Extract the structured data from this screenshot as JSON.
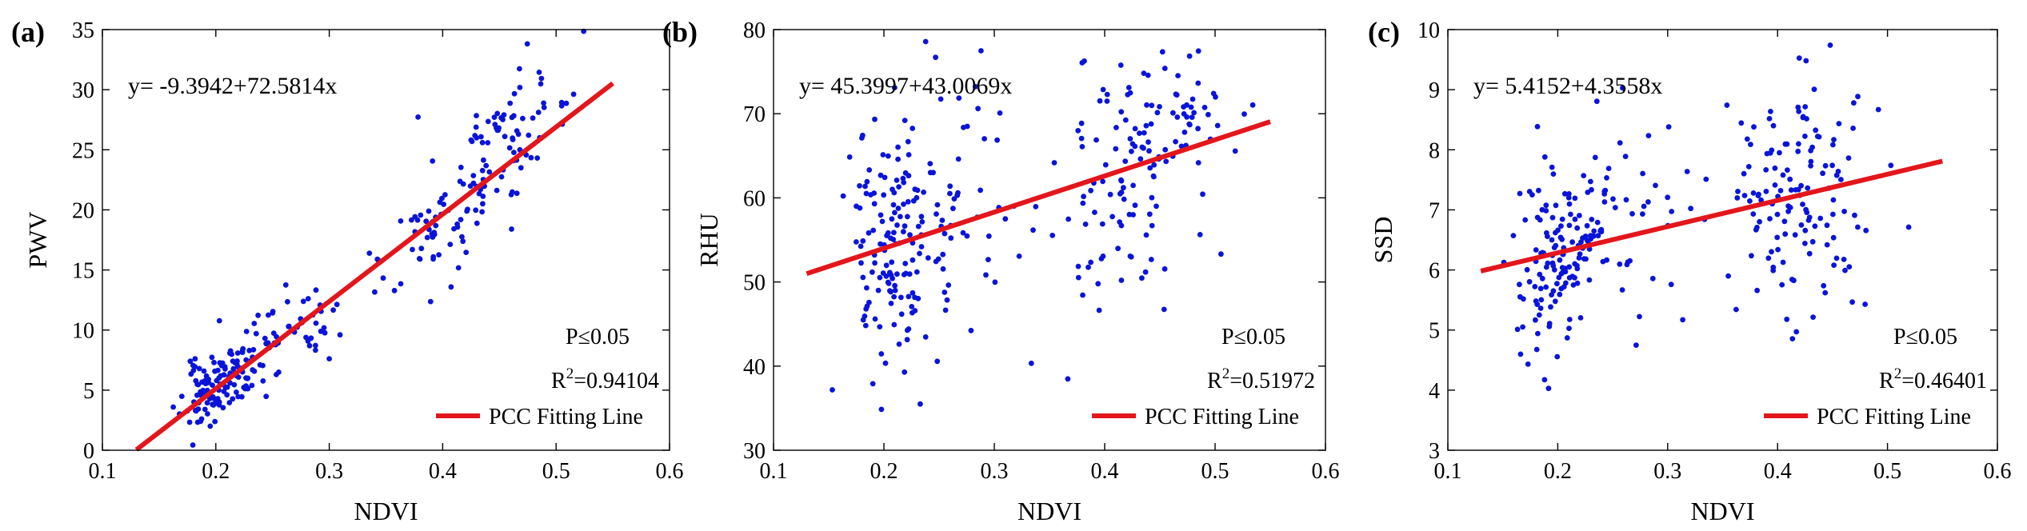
{
  "colors": {
    "points": "#0a14d8",
    "fit_line": "#e3161c",
    "axis": "#000000"
  },
  "chart_data": [
    {
      "type": "scatter",
      "panel_label": "(a)",
      "xlabel": "NDVI",
      "ylabel": "PWV",
      "xlim": [
        0.1,
        0.6
      ],
      "ylim": [
        0,
        35
      ],
      "xticks": [
        "0.1",
        "0.2",
        "0.3",
        "0.4",
        "0.5",
        "0.6"
      ],
      "yticks": [
        "0",
        "5",
        "10",
        "15",
        "20",
        "25",
        "30",
        "35"
      ],
      "equation": "y= -9.3942+72.5814x",
      "p_text": "P≤0.05",
      "r2_prefix": "R",
      "r2_sup": "2",
      "r2_value": "=0.94104",
      "legend_label": "PCC Fitting Line",
      "fit": {
        "intercept": -9.3942,
        "slope": 72.5814,
        "x_range": [
          0.13,
          0.55
        ]
      },
      "clusters": [
        {
          "cx": 0.205,
          "cy": 5.5,
          "sx": 0.018,
          "sy": 1.6,
          "n": 130,
          "rho": 0.5
        },
        {
          "cx": 0.27,
          "cy": 10.5,
          "sx": 0.025,
          "sy": 1.8,
          "n": 45,
          "rho": 0.5
        },
        {
          "cx": 0.41,
          "cy": 19.5,
          "sx": 0.03,
          "sy": 3.5,
          "n": 80,
          "rho": 0.6
        },
        {
          "cx": 0.465,
          "cy": 27.0,
          "sx": 0.025,
          "sy": 2.2,
          "n": 55,
          "rho": 0.3
        }
      ],
      "seed": 11
    },
    {
      "type": "scatter",
      "panel_label": "(b)",
      "xlabel": "NDVI",
      "ylabel": "RHU",
      "xlim": [
        0.1,
        0.6
      ],
      "ylim": [
        30,
        80
      ],
      "xticks": [
        "0.1",
        "0.2",
        "0.3",
        "0.4",
        "0.5",
        "0.6"
      ],
      "yticks": [
        "30",
        "40",
        "50",
        "60",
        "70",
        "80"
      ],
      "equation": "y= 45.3997+43.0069x",
      "p_text": "P≤0.05",
      "r2_prefix": "R",
      "r2_sup": "2",
      "r2_value": "=0.51972",
      "legend_label": "PCC Fitting Line",
      "fit": {
        "intercept": 45.3997,
        "slope": 43.0069,
        "x_range": [
          0.13,
          0.55
        ]
      },
      "clusters": [
        {
          "cx": 0.21,
          "cy": 54,
          "sx": 0.022,
          "sy": 7.5,
          "n": 150,
          "rho": 0.0
        },
        {
          "cx": 0.27,
          "cy": 58,
          "sx": 0.028,
          "sy": 9.0,
          "n": 40,
          "rho": 0.0
        },
        {
          "cx": 0.41,
          "cy": 61,
          "sx": 0.028,
          "sy": 8.5,
          "n": 80,
          "rho": 0.2
        },
        {
          "cx": 0.46,
          "cy": 68,
          "sx": 0.028,
          "sy": 4.5,
          "n": 60,
          "rho": 0.0
        }
      ],
      "seed": 23
    },
    {
      "type": "scatter",
      "panel_label": "(c)",
      "xlabel": "NDVI",
      "ylabel": "SSD",
      "xlim": [
        0.1,
        0.6
      ],
      "ylim": [
        3,
        10
      ],
      "xticks": [
        "0.1",
        "0.2",
        "0.3",
        "0.4",
        "0.5",
        "0.6"
      ],
      "yticks": [
        "3",
        "4",
        "5",
        "6",
        "7",
        "8",
        "9",
        "10"
      ],
      "equation": "y= 5.4152+4.3558x",
      "p_text": "P≤0.05",
      "r2_prefix": "R",
      "r2_sup": "2",
      "r2_value": "=0.46401",
      "legend_label": "PCC Fitting Line",
      "fit": {
        "intercept": 5.4152,
        "slope": 4.3558,
        "x_range": [
          0.13,
          0.55
        ]
      },
      "clusters": [
        {
          "cx": 0.205,
          "cy": 6.3,
          "sx": 0.02,
          "sy": 0.8,
          "n": 140,
          "rho": 0.3
        },
        {
          "cx": 0.27,
          "cy": 6.9,
          "sx": 0.03,
          "sy": 0.9,
          "n": 40,
          "rho": 0.0
        },
        {
          "cx": 0.42,
          "cy": 7.3,
          "sx": 0.035,
          "sy": 1.0,
          "n": 140,
          "rho": 0.0
        }
      ],
      "seed": 37
    }
  ]
}
